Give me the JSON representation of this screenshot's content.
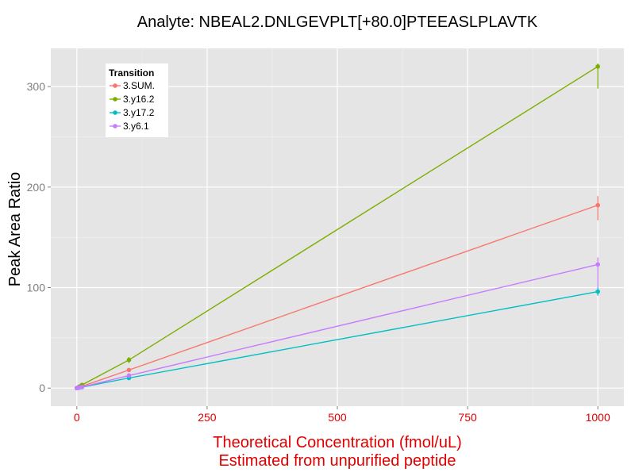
{
  "chart_data": {
    "type": "line",
    "title": "Analyte: NBEAL2.DNLGEVPLT[+80.0]PTEEASLPLAVTK",
    "xlabel": [
      "Theoretical Concentration (fmol/uL)",
      "Estimated from unpurified peptide"
    ],
    "ylabel": "Peak Area Ratio",
    "xlim": [
      -50,
      1050
    ],
    "ylim": [
      -18,
      338
    ],
    "x_ticks": [
      0,
      250,
      500,
      750,
      1000
    ],
    "x_tick_labels": [
      "0",
      "250",
      "500",
      "750",
      "1000"
    ],
    "y_ticks": [
      0,
      100,
      200,
      300
    ],
    "y_tick_labels": [
      "0",
      "100",
      "200",
      "300"
    ],
    "grid": true,
    "legend": {
      "title": "Transition",
      "placement": "top-left"
    },
    "x": [
      0,
      1,
      5,
      10,
      100,
      1000
    ],
    "series": [
      {
        "name": "3.SUM.",
        "color": "#F8766D",
        "values": [
          0,
          0.2,
          0.9,
          1.8,
          18,
          182
        ],
        "error": [
          [
            0,
            0
          ],
          [
            0,
            0
          ],
          [
            0,
            0
          ],
          [
            0,
            0
          ],
          [
            16,
            20
          ],
          [
            167,
            191
          ]
        ]
      },
      {
        "name": "3.y16.2",
        "color": "#7CAE00",
        "values": [
          0,
          0.3,
          1.6,
          3.2,
          28,
          320
        ],
        "error": [
          [
            0,
            0
          ],
          [
            0,
            0
          ],
          [
            0,
            0
          ],
          [
            0,
            0
          ],
          [
            25,
            31
          ],
          [
            298,
            323
          ]
        ]
      },
      {
        "name": "3.y17.2",
        "color": "#00BFC4",
        "values": [
          0,
          0.1,
          0.5,
          1.0,
          10,
          96
        ],
        "error": [
          [
            0,
            0
          ],
          [
            0,
            0
          ],
          [
            0,
            0
          ],
          [
            0,
            0
          ],
          [
            9,
            11
          ],
          [
            92,
            100
          ]
        ]
      },
      {
        "name": "3.y6.1",
        "color": "#C77CFF",
        "values": [
          0,
          0.1,
          0.6,
          1.2,
          12.5,
          123
        ],
        "error": [
          [
            0,
            0
          ],
          [
            0,
            0
          ],
          [
            0,
            0
          ],
          [
            0,
            0
          ],
          [
            11,
            14
          ],
          [
            100,
            130
          ]
        ]
      }
    ]
  },
  "colors": {
    "panel_background": "#E5E5E5",
    "grid_major": "#FFFFFF",
    "x_axis_text": "#E00000"
  }
}
